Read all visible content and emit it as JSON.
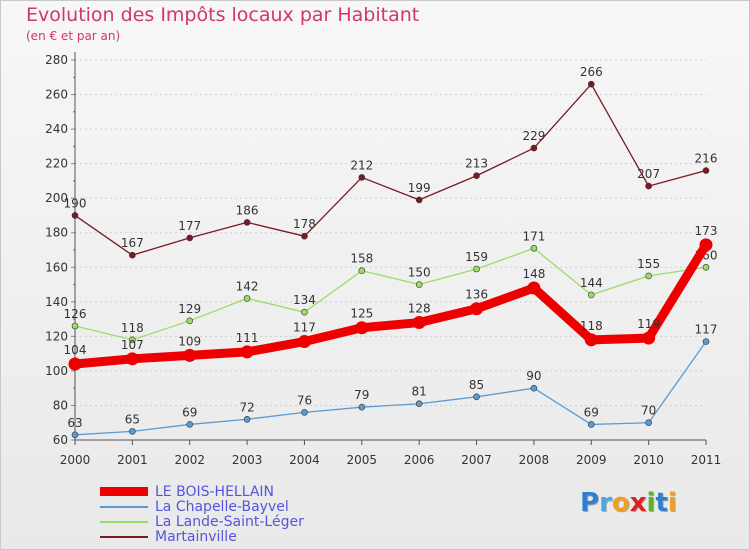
{
  "header": {
    "title": "Evolution des Impôts locaux par Habitant",
    "subtitle": "(en € et par an)"
  },
  "logo": {
    "text": "Proxiti",
    "letters": [
      "P",
      "r",
      "o",
      "x",
      "i",
      "t",
      "i"
    ],
    "colors": [
      "#2f80d0",
      "#4aa8e8",
      "#f0a020",
      "#e02020",
      "#60b030",
      "#2f80d0",
      "#f0a020"
    ]
  },
  "chart_data": {
    "type": "line",
    "title": "Evolution des Impôts locaux par Habitant",
    "subtitle": "(en € et par an)",
    "xlabel": "",
    "ylabel": "",
    "categories": [
      "2000",
      "2001",
      "2002",
      "2003",
      "2004",
      "2005",
      "2006",
      "2007",
      "2008",
      "2009",
      "2010",
      "2011"
    ],
    "ylim": [
      60,
      280
    ],
    "yticks": [
      60,
      80,
      100,
      120,
      140,
      160,
      180,
      200,
      220,
      240,
      260,
      280
    ],
    "grid": "horizontal dashed",
    "legend_position": "bottom-left",
    "series": [
      {
        "name": "LE BOIS-HELLAIN",
        "color": "#ee0000",
        "values": [
          104,
          107,
          109,
          111,
          117,
          125,
          128,
          136,
          148,
          118,
          119,
          173
        ],
        "labels": [
          "104",
          "107",
          "109",
          "111",
          "117",
          "125",
          "128",
          "136",
          "148",
          "118",
          "119",
          "173"
        ],
        "emphasis": true
      },
      {
        "name": "La Chapelle-Bayvel",
        "color": "#5b9bd1",
        "values": [
          63,
          65,
          69,
          72,
          76,
          79,
          81,
          85,
          90,
          69,
          70,
          117
        ],
        "labels": [
          "63",
          "65",
          "69",
          "72",
          "76",
          "79",
          "81",
          "85",
          "90",
          "69",
          "70",
          "117"
        ]
      },
      {
        "name": "La Lande-Saint-Léger",
        "color": "#99dd66",
        "values": [
          126,
          118,
          129,
          142,
          134,
          158,
          150,
          159,
          171,
          144,
          155,
          160
        ],
        "labels": [
          "126",
          "118",
          "129",
          "142",
          "134",
          "158",
          "150",
          "159",
          "171",
          "144",
          "155",
          "160"
        ]
      },
      {
        "name": "Martainville",
        "color": "#7a1a22",
        "values": [
          190,
          167,
          177,
          186,
          178,
          212,
          199,
          213,
          229,
          266,
          207,
          216
        ],
        "labels": [
          "190",
          "167",
          "177",
          "186",
          "178",
          "212",
          "199",
          "213",
          "229",
          "266",
          "207",
          "216"
        ]
      }
    ]
  }
}
